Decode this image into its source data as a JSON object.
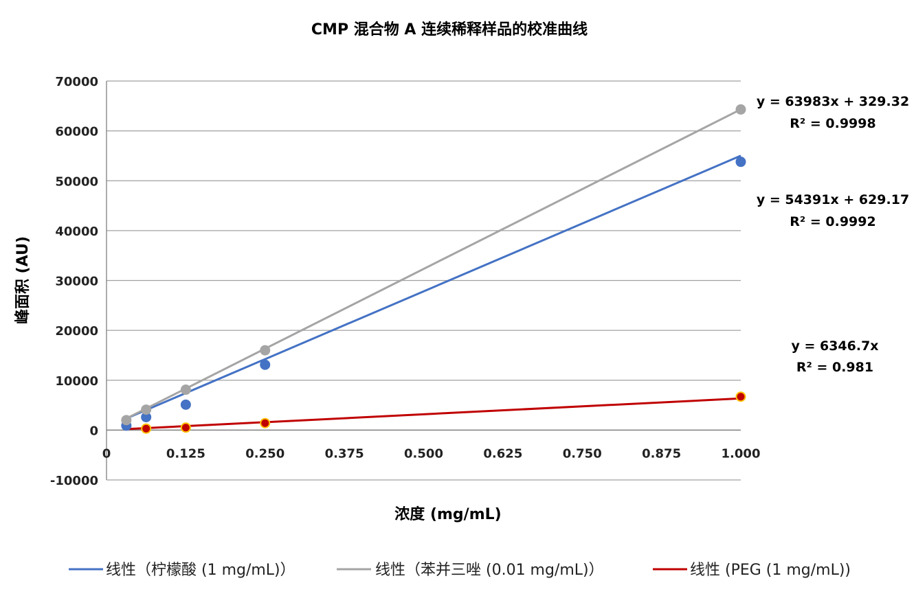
{
  "chart_data": {
    "type": "scatter",
    "title": "CMP 混合物 A 连续稀释样品的校准曲线",
    "xlabel": "浓度 (mg/mL)",
    "ylabel": "峰面积 (AU)",
    "xlim": [
      0,
      1.0
    ],
    "ylim": [
      -10000,
      70000
    ],
    "x_ticks": [
      0,
      0.125,
      0.25,
      0.375,
      0.5,
      0.625,
      0.75,
      0.875,
      1.0
    ],
    "x_tick_labels": [
      "0",
      "0.125",
      "0.250",
      "0.375",
      "0.500",
      "0.625",
      "0.750",
      "0.875",
      "1.000"
    ],
    "y_ticks": [
      -10000,
      0,
      10000,
      20000,
      30000,
      40000,
      50000,
      60000,
      70000
    ],
    "y_tick_labels": [
      "-10000",
      "0",
      "10000",
      "20000",
      "30000",
      "40000",
      "50000",
      "60000",
      "70000"
    ],
    "grid": true,
    "legend_position": "bottom",
    "series": [
      {
        "name": "线性（柠檬酸 (1 mg/mL)）",
        "color": "#4472c4",
        "trend": {
          "slope": 54391,
          "intercept": 629.17,
          "x_range": [
            0.03125,
            1.0
          ]
        },
        "equation": "y = 54391x + 629.17",
        "r2": "R² = 0.9992",
        "points": [
          [
            0.03125,
            900
          ],
          [
            0.0625,
            2600
          ],
          [
            0.125,
            5100
          ],
          [
            0.25,
            13100
          ],
          [
            1.0,
            53800
          ]
        ]
      },
      {
        "name": "线性（苯并三唑 (0.01 mg/mL)）",
        "color": "#a5a5a5",
        "trend": {
          "slope": 63983,
          "intercept": 329.32,
          "x_range": [
            0.03125,
            1.0
          ]
        },
        "equation": "y = 63983x + 329.32",
        "r2": "R² = 0.9998",
        "points": [
          [
            0.03125,
            2000
          ],
          [
            0.0625,
            4100
          ],
          [
            0.125,
            8100
          ],
          [
            0.25,
            16000
          ],
          [
            1.0,
            64300
          ]
        ]
      },
      {
        "name": "线性 (PEG (1 mg/mL))",
        "color": "#c00000",
        "marker_outline": "#ffc000",
        "trend": {
          "slope": 6346.7,
          "intercept": 0,
          "x_range": [
            0.03125,
            1.0
          ]
        },
        "equation": "y = 6346.7x",
        "r2": "R² = 0.981",
        "points": [
          [
            0.0625,
            300
          ],
          [
            0.125,
            500
          ],
          [
            0.25,
            1400
          ],
          [
            1.0,
            6700
          ]
        ]
      }
    ]
  }
}
